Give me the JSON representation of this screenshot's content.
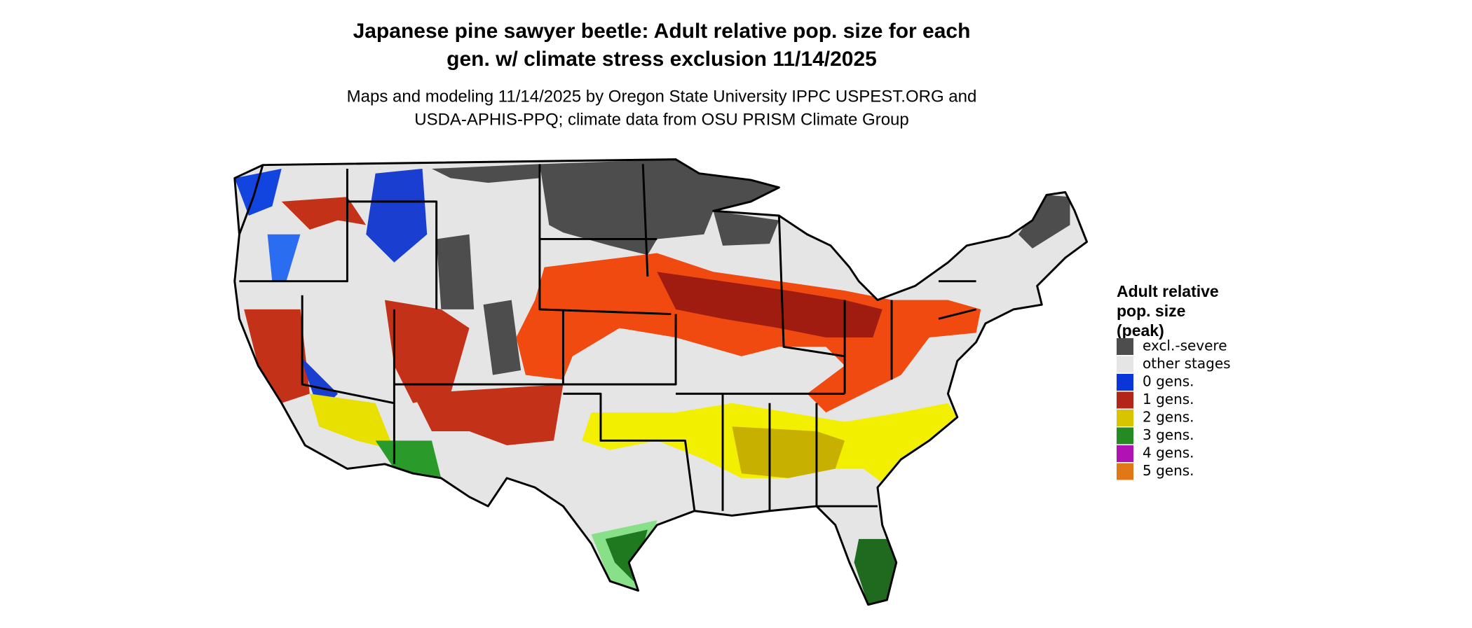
{
  "title": {
    "lines": [
      "Japanese pine sawyer beetle: Adult relative pop. size for each",
      "gen. w/ climate stress exclusion 11/14/2025"
    ]
  },
  "subtitle": {
    "lines": [
      "Maps and modeling 11/14/2025 by Oregon State University IPPC USPEST.ORG and",
      "USDA-APHIS-PPQ; climate data from OSU PRISM Climate Group"
    ]
  },
  "legend": {
    "title": [
      "Adult relative",
      "pop. size",
      "(peak)"
    ],
    "items": [
      {
        "label": "excl.-severe",
        "color": "#4d4d4d"
      },
      {
        "label": "other stages",
        "color": "#e5e5e5"
      },
      {
        "label": "0 gens.",
        "color": "#0a36d9"
      },
      {
        "label": "1 gens.",
        "color": "#b22518"
      },
      {
        "label": "2 gens.",
        "color": "#d8c400"
      },
      {
        "label": "3 gens.",
        "color": "#238b22"
      },
      {
        "label": "4 gens.",
        "color": "#b012b4"
      },
      {
        "label": "5 gens.",
        "color": "#e07818"
      }
    ]
  }
}
